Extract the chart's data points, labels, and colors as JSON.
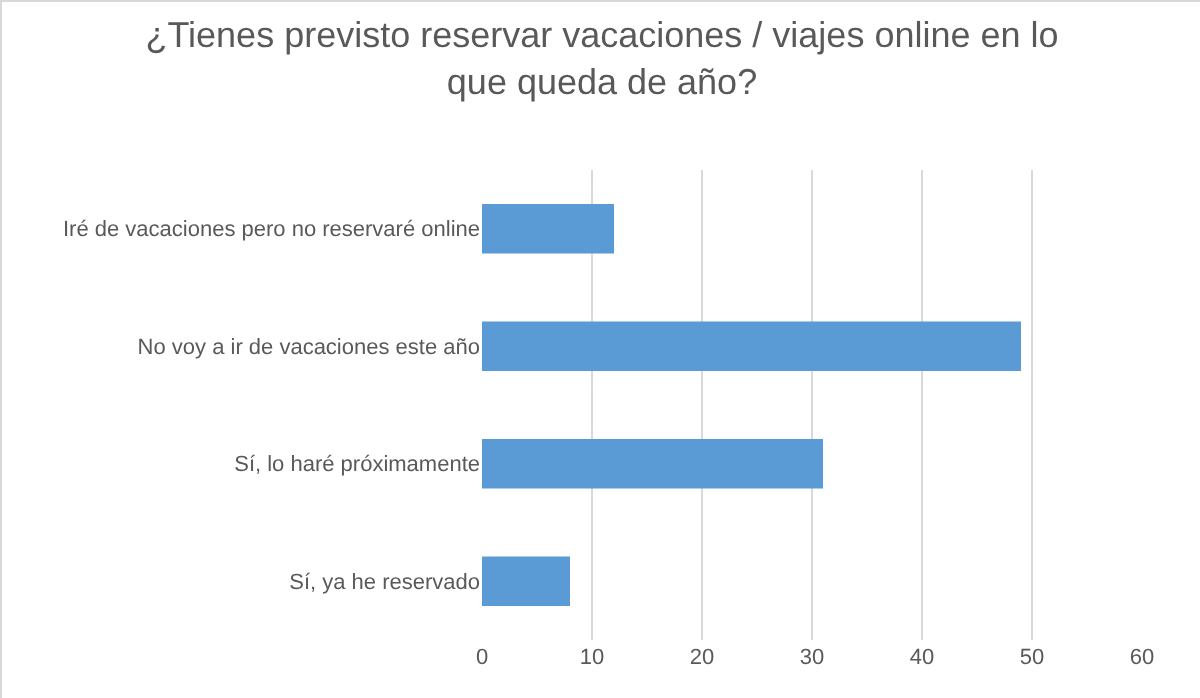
{
  "chart_data": {
    "type": "bar",
    "orientation": "horizontal",
    "title": "¿Tienes previsto reservar vacaciones / viajes online en lo que queda de año?",
    "categories": [
      "Iré de vacaciones pero no reservaré online",
      "No voy a ir de vacaciones este año",
      "Sí, lo haré próximamente",
      "Sí, ya he reservado"
    ],
    "values": [
      12,
      49,
      31,
      8
    ],
    "color": "#5b9bd5",
    "xlim": [
      0,
      60
    ],
    "xticks": [
      0,
      10,
      20,
      30,
      40,
      50,
      60
    ],
    "grid": "x"
  }
}
